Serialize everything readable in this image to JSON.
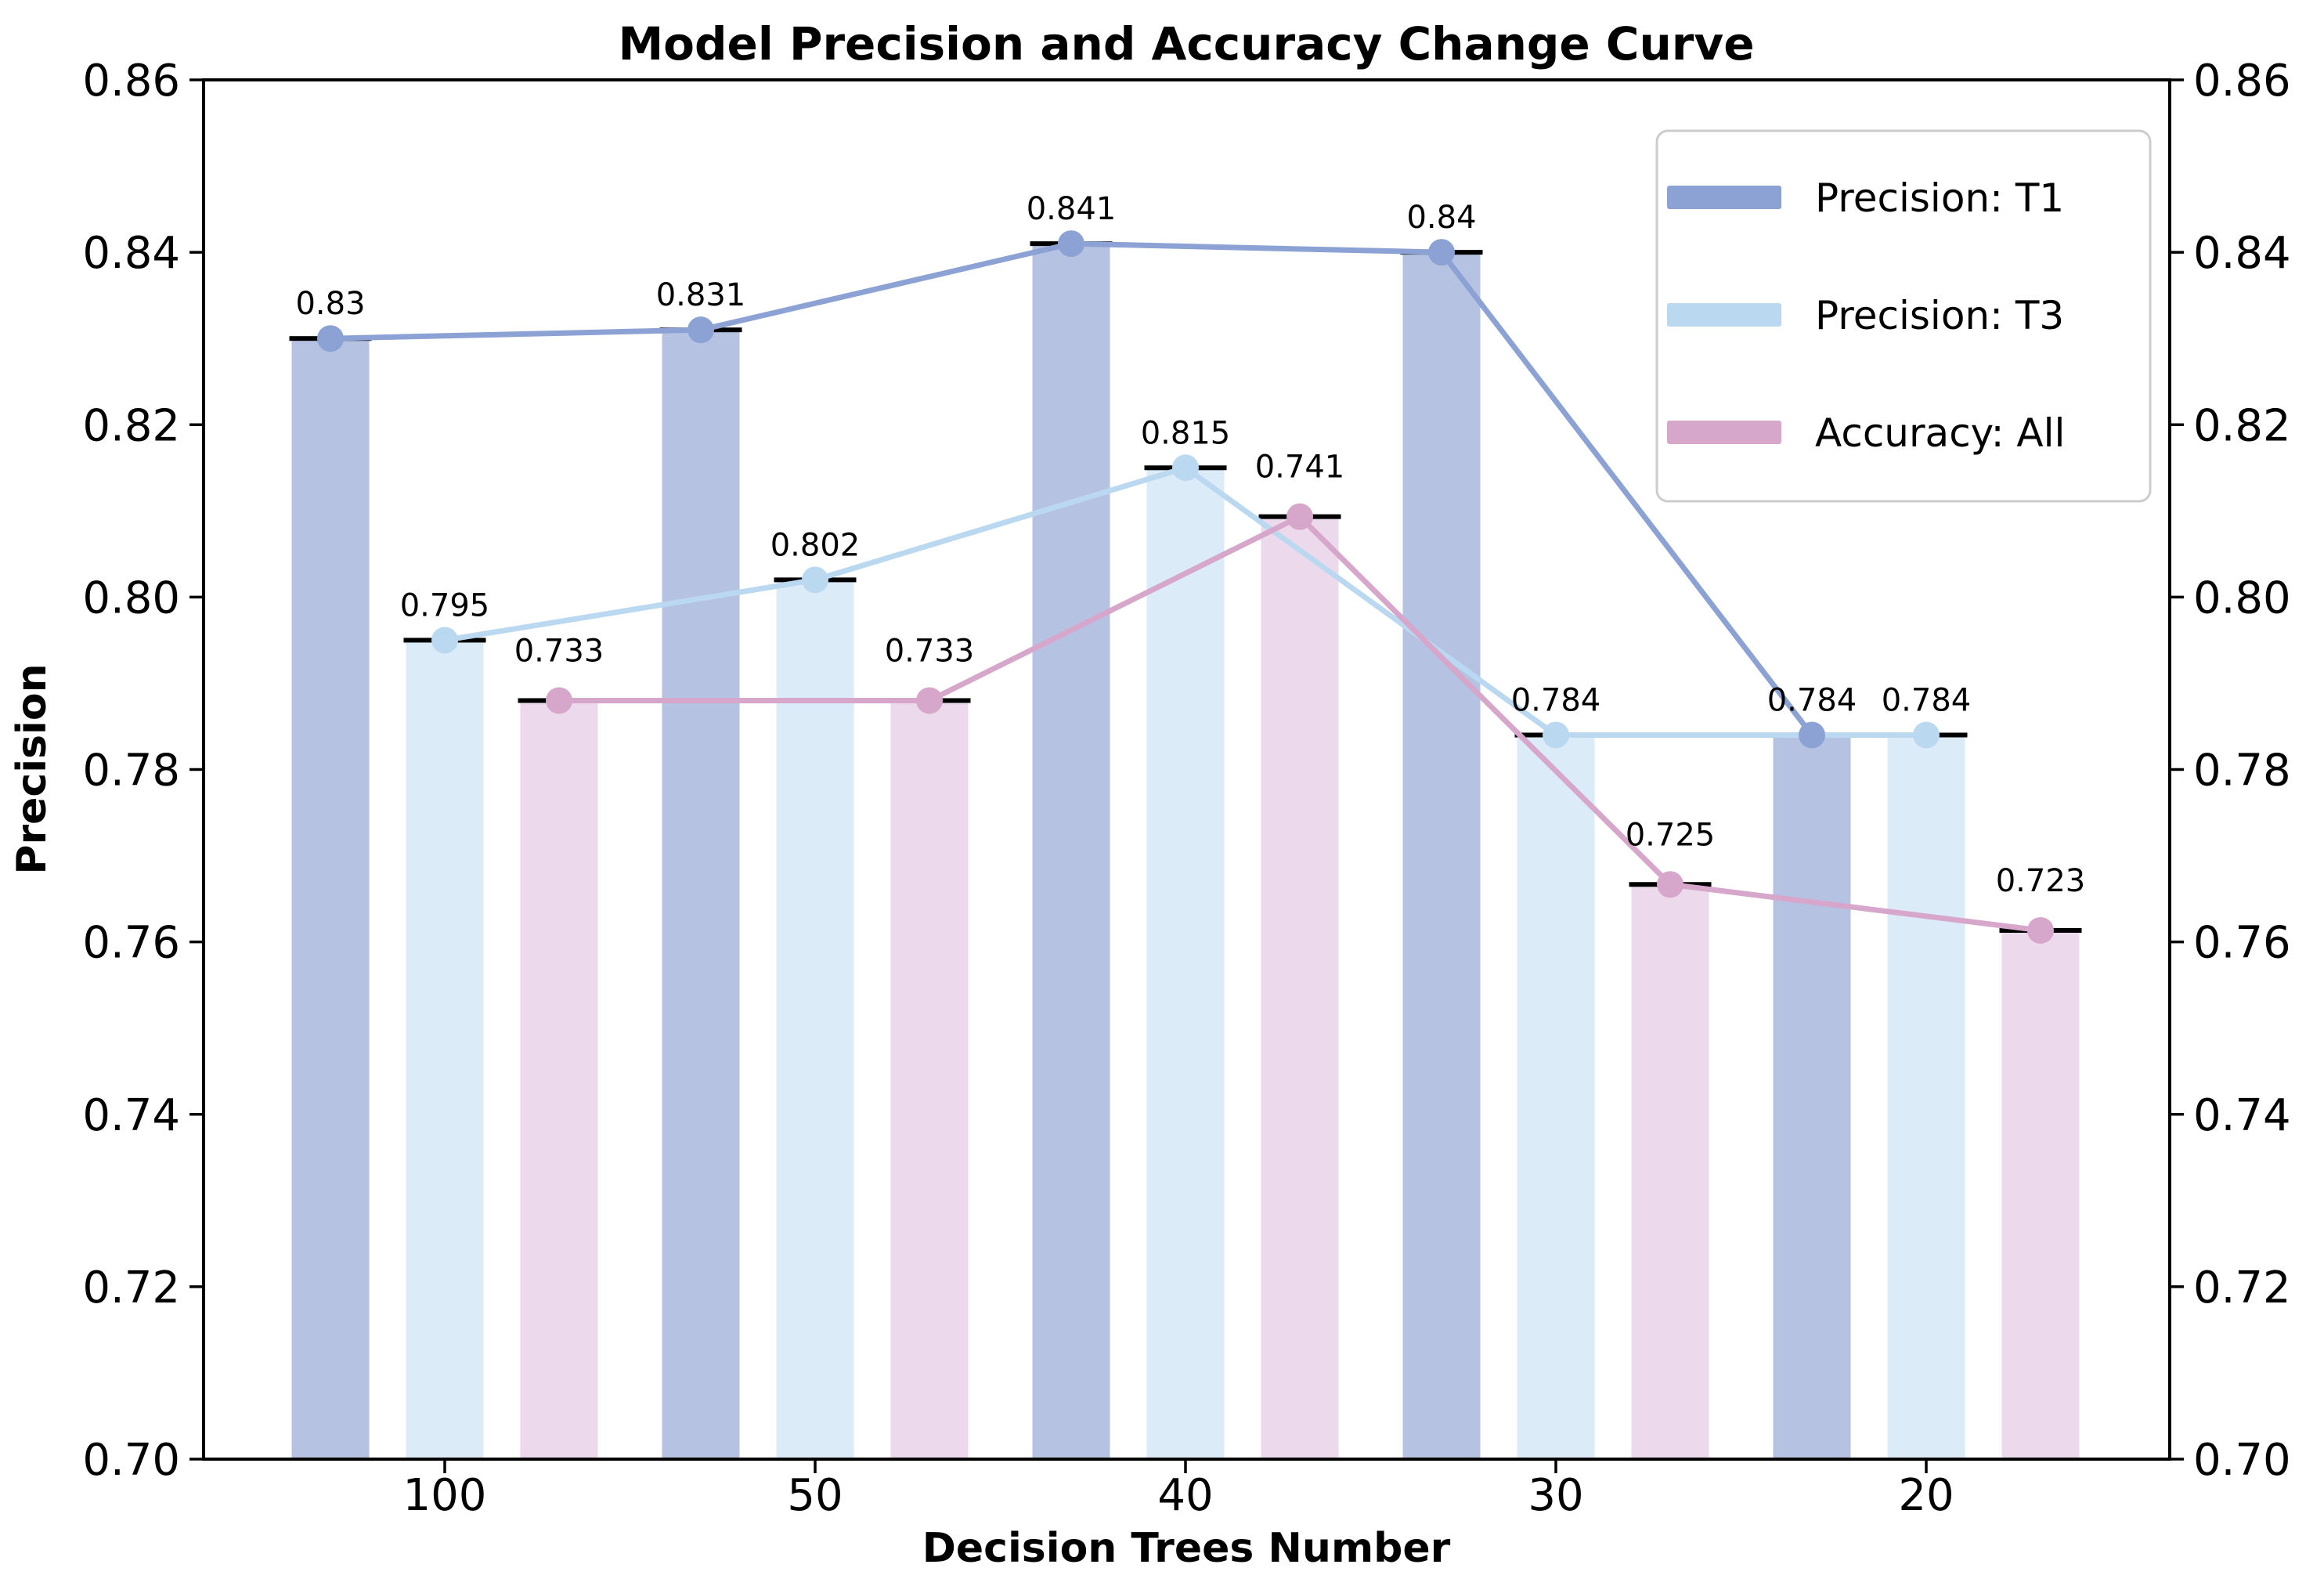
{
  "chart_data": {
    "type": "bar+line",
    "title": "Model Precision and Accuracy Change Curve",
    "xlabel": "Decision Trees Number",
    "ylabel": "Precision",
    "categories": [
      "100",
      "50",
      "40",
      "30",
      "20"
    ],
    "left_ylim": [
      0.7,
      0.86
    ],
    "ytick_labels": [
      "0.70",
      "0.72",
      "0.74",
      "0.76",
      "0.78",
      "0.80",
      "0.82",
      "0.84",
      "0.86"
    ],
    "right_ytick_labels": [
      "0.70",
      "0.72",
      "0.74",
      "0.76",
      "0.78",
      "0.80",
      "0.82",
      "0.84",
      "0.86"
    ],
    "grid": false,
    "legend_position": "upper right",
    "bar_cap_color": "#000000",
    "series": [
      {
        "name": "Precision: T1",
        "axis": "left",
        "bar_color": "#b5c2e2",
        "line_color": "#8ca2d4",
        "values": [
          0.83,
          0.831,
          0.841,
          0.84,
          0.784
        ],
        "value_labels": [
          "0.83",
          "0.831",
          "0.841",
          "0.84",
          "0.784"
        ]
      },
      {
        "name": "Precision: T3",
        "axis": "left",
        "bar_color": "#dcebf8",
        "line_color": "#bad9f1",
        "values": [
          0.795,
          0.802,
          0.815,
          0.784,
          0.784
        ],
        "value_labels": [
          "0.795",
          "0.802",
          "0.815",
          "0.784",
          "0.784"
        ]
      },
      {
        "name": "Accuracy: All",
        "axis": "right",
        "right_ylim": [
          0.7,
          0.76
        ],
        "bar_color": "#ecdaec",
        "line_color": "#d6a7cb",
        "values": [
          0.733,
          0.733,
          0.741,
          0.725,
          0.723
        ],
        "value_labels": [
          "0.733",
          "0.733",
          "0.741",
          "0.725",
          "0.723"
        ]
      }
    ]
  }
}
